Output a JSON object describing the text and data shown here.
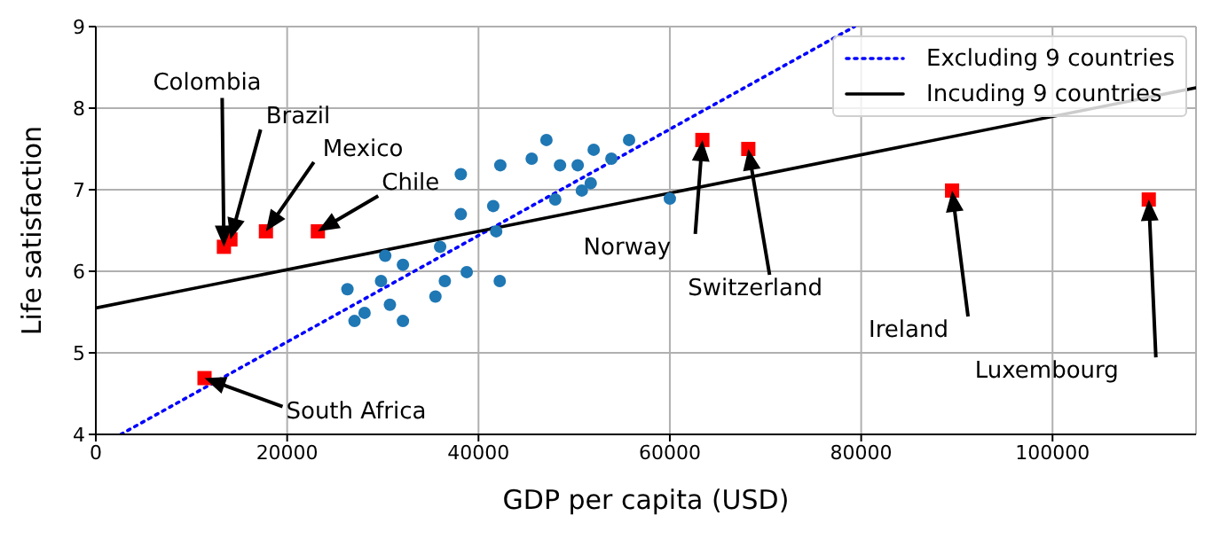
{
  "chart_data": {
    "type": "scatter",
    "xlabel": "GDP per capita (USD)",
    "ylabel": "Life satisfaction",
    "xlim": [
      0,
      115000
    ],
    "ylim": [
      4,
      9
    ],
    "xticks": [
      0,
      20000,
      40000,
      60000,
      80000,
      100000
    ],
    "yticks": [
      4,
      5,
      6,
      7,
      8,
      9
    ],
    "grid": true,
    "legend": "top right",
    "series": [
      {
        "type": "scatter",
        "marker": "circle",
        "color": "#1f77b4",
        "x": [
          38150,
          42280,
          45560,
          47100,
          48520,
          50370,
          52040,
          53890,
          55740,
          51730,
          50800,
          48020,
          41540,
          38150,
          41850,
          30250,
          32100,
          35990,
          29810,
          26300,
          36480,
          38770,
          42220,
          28090,
          27040,
          30740,
          32100,
          35500,
          60000
        ],
        "values": [
          7.19,
          7.3,
          7.38,
          7.61,
          7.3,
          7.3,
          7.49,
          7.38,
          7.61,
          7.08,
          6.99,
          6.88,
          6.8,
          6.7,
          6.49,
          6.19,
          6.08,
          6.3,
          5.88,
          5.78,
          5.88,
          5.99,
          5.88,
          5.49,
          5.39,
          5.59,
          5.39,
          5.69,
          6.89
        ]
      },
      {
        "type": "scatter",
        "marker": "square",
        "color": "#ff0000",
        "x": [
          13390,
          14070,
          17780,
          23210,
          11360,
          63400,
          68200,
          89500,
          110060
        ],
        "values": [
          6.3,
          6.39,
          6.49,
          6.49,
          4.69,
          7.61,
          7.5,
          6.99,
          6.88
        ]
      },
      {
        "type": "line",
        "name": "Excluding 9 countries",
        "color": "#0000ff",
        "line_style": "dotted",
        "marker": "none",
        "x": [
          2600,
          79300
        ],
        "values": [
          4,
          9
        ]
      },
      {
        "type": "line",
        "name": "Incuding 9 countries",
        "color": "#000000",
        "line_style": "solid",
        "marker": "none",
        "x": [
          0,
          115000
        ],
        "values": [
          5.55,
          8.25
        ]
      }
    ],
    "annotations": [
      "Colombia",
      "Brazil",
      "Mexico",
      "Chile",
      "South Africa",
      "Norway",
      "Switzerland",
      "Ireland",
      "Luxembourg"
    ]
  }
}
